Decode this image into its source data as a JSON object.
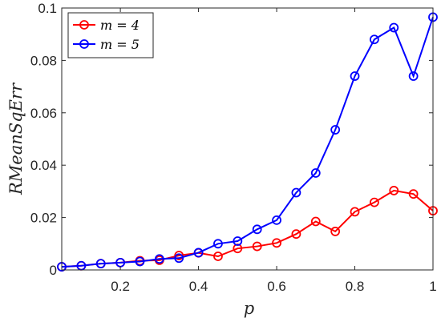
{
  "chart_data": {
    "type": "line",
    "xlabel": "p",
    "ylabel": "RMeanSqErr",
    "xlim": [
      0.05,
      1.0
    ],
    "ylim": [
      0,
      0.1
    ],
    "xticks": [
      0.2,
      0.4,
      0.6,
      0.8,
      1
    ],
    "xtick_labels": [
      "0.2",
      "0.4",
      "0.6",
      "0.8",
      "1"
    ],
    "yticks": [
      0,
      0.02,
      0.04,
      0.06,
      0.08,
      0.1
    ],
    "ytick_labels": [
      "0",
      "0.02",
      "0.04",
      "0.06",
      "0.08",
      "0.1"
    ],
    "grid": false,
    "legend_position": "top-left",
    "x": [
      0.05,
      0.1,
      0.15,
      0.2,
      0.25,
      0.3,
      0.35,
      0.4,
      0.45,
      0.5,
      0.55,
      0.6,
      0.65,
      0.7,
      0.75,
      0.8,
      0.85,
      0.9,
      0.95,
      1.0
    ],
    "series": [
      {
        "name": "m = 4",
        "color": "#ff0000",
        "marker": "circle",
        "values": [
          0.0012,
          0.0016,
          0.0024,
          0.0028,
          0.0035,
          0.0037,
          0.0055,
          0.0065,
          0.0052,
          0.0082,
          0.009,
          0.0103,
          0.0137,
          0.0185,
          0.0147,
          0.0222,
          0.0258,
          0.0303,
          0.029,
          0.0226
        ]
      },
      {
        "name": "m = 5",
        "color": "#0000ff",
        "marker": "circle",
        "values": [
          0.0012,
          0.0016,
          0.0024,
          0.0028,
          0.0032,
          0.0042,
          0.0045,
          0.0066,
          0.01,
          0.011,
          0.0155,
          0.019,
          0.0295,
          0.037,
          0.0535,
          0.074,
          0.088,
          0.0925,
          0.074,
          0.0965
        ]
      }
    ]
  }
}
